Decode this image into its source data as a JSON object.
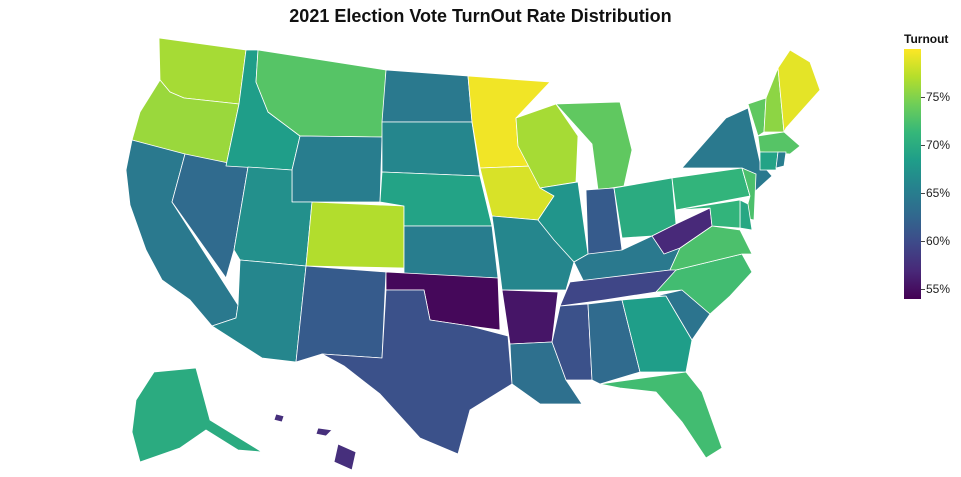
{
  "title": "2021 Election Vote TurnOut Rate Distribution",
  "legend": {
    "title": "Turnout",
    "ticks": [
      "75%",
      "70%",
      "65%",
      "60%",
      "55%"
    ],
    "tick_values": [
      75,
      70,
      65,
      60,
      55
    ],
    "range": [
      54,
      80
    ],
    "colorscale": "viridis"
  },
  "chart_data": {
    "type": "choropleth",
    "title": "2021 Election Vote TurnOut Rate Distribution",
    "colorbar_title": "Turnout",
    "unit": "%",
    "color_range": [
      54,
      80
    ],
    "states": [
      {
        "code": "WA",
        "value": 76.5
      },
      {
        "code": "OR",
        "value": 76.0
      },
      {
        "code": "CA",
        "value": 64.5
      },
      {
        "code": "NV",
        "value": 63.0
      },
      {
        "code": "ID",
        "value": 68.5
      },
      {
        "code": "MT",
        "value": 73.0
      },
      {
        "code": "WY",
        "value": 65.0
      },
      {
        "code": "UT",
        "value": 67.0
      },
      {
        "code": "AZ",
        "value": 66.0
      },
      {
        "code": "CO",
        "value": 77.0
      },
      {
        "code": "NM",
        "value": 61.5
      },
      {
        "code": "ND",
        "value": 64.5
      },
      {
        "code": "SD",
        "value": 66.0
      },
      {
        "code": "NE",
        "value": 69.0
      },
      {
        "code": "KS",
        "value": 65.0
      },
      {
        "code": "OK",
        "value": 54.5
      },
      {
        "code": "TX",
        "value": 60.5
      },
      {
        "code": "MN",
        "value": 79.5
      },
      {
        "code": "IA",
        "value": 78.5
      },
      {
        "code": "MO",
        "value": 66.0
      },
      {
        "code": "AR",
        "value": 55.5
      },
      {
        "code": "LA",
        "value": 63.5
      },
      {
        "code": "WI",
        "value": 76.5
      },
      {
        "code": "IL",
        "value": 67.5
      },
      {
        "code": "MI",
        "value": 73.5
      },
      {
        "code": "IN",
        "value": 61.5
      },
      {
        "code": "OH",
        "value": 70.0
      },
      {
        "code": "KY",
        "value": 64.5
      },
      {
        "code": "TN",
        "value": 59.5
      },
      {
        "code": "MS",
        "value": 60.5
      },
      {
        "code": "AL",
        "value": 63.0
      },
      {
        "code": "GA",
        "value": 68.5
      },
      {
        "code": "FL",
        "value": 72.0
      },
      {
        "code": "SC",
        "value": 64.0
      },
      {
        "code": "NC",
        "value": 72.0
      },
      {
        "code": "VA",
        "value": 72.5
      },
      {
        "code": "WV",
        "value": 57.0
      },
      {
        "code": "PA",
        "value": 71.0
      },
      {
        "code": "NY",
        "value": 64.5
      },
      {
        "code": "VT",
        "value": 73.5
      },
      {
        "code": "NH",
        "value": 75.5
      },
      {
        "code": "ME",
        "value": 79.0
      },
      {
        "code": "MA",
        "value": 73.0
      },
      {
        "code": "CT",
        "value": 69.0
      },
      {
        "code": "RI",
        "value": 65.0
      },
      {
        "code": "NJ",
        "value": 72.5
      },
      {
        "code": "DE",
        "value": 69.5
      },
      {
        "code": "MD",
        "value": 71.0
      },
      {
        "code": "AK",
        "value": 70.0
      },
      {
        "code": "HI",
        "value": 57.5
      }
    ]
  }
}
